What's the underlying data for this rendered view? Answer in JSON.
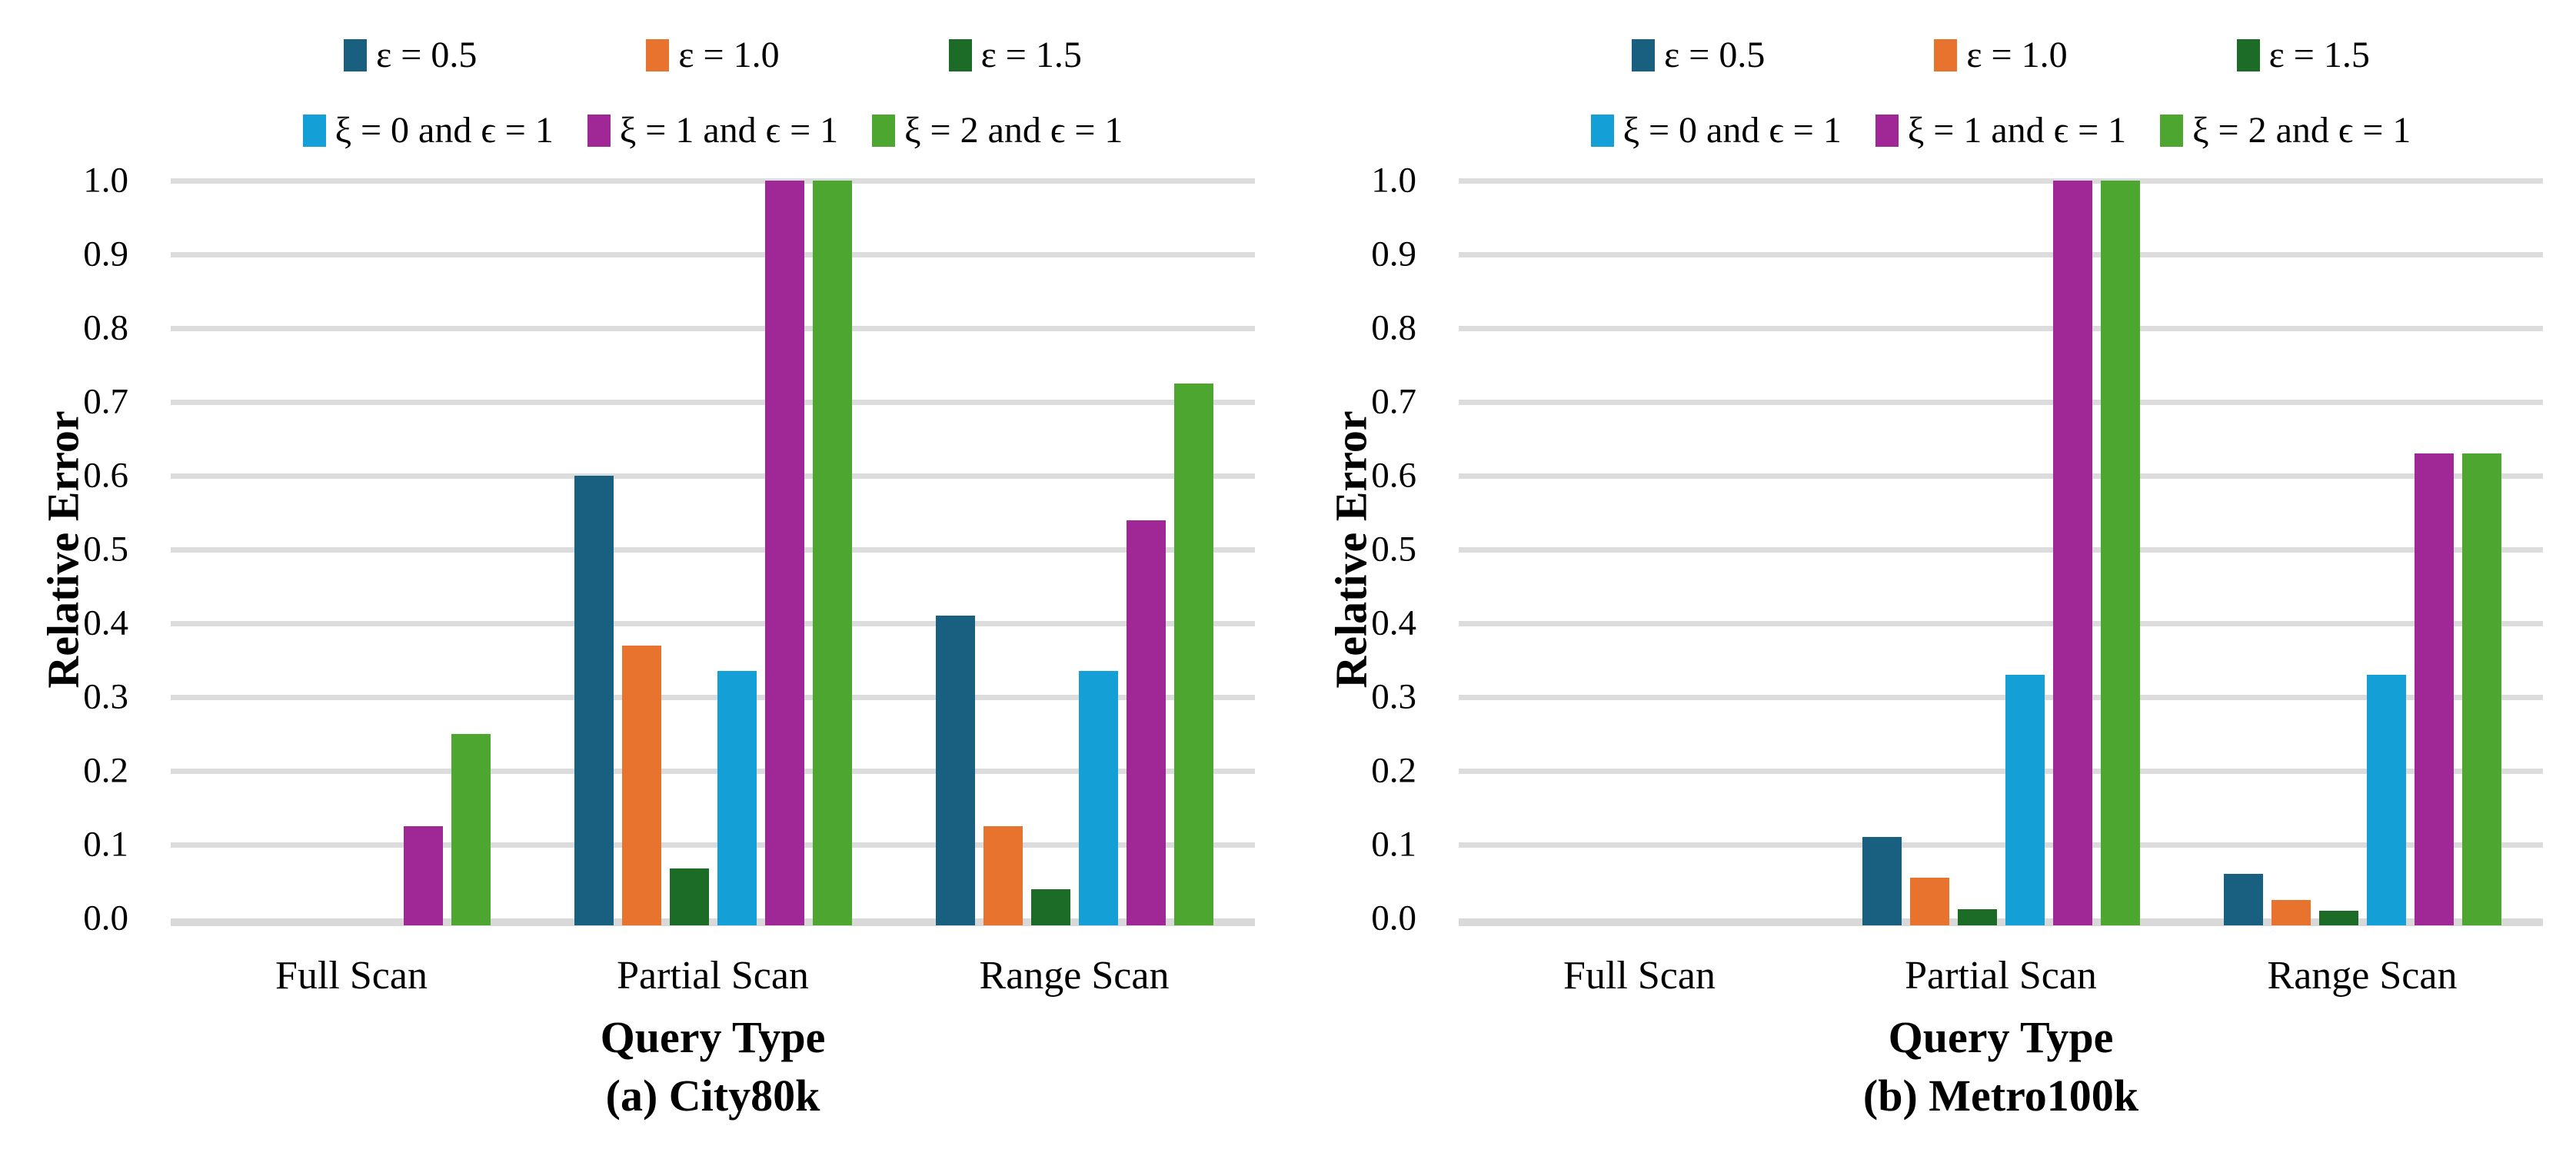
{
  "chart_data": [
    {
      "type": "bar",
      "title": "(a) City80k",
      "xlabel": "Query Type",
      "ylabel": "Relative Error",
      "ylim": [
        0,
        1
      ],
      "yticks": [
        "0.0",
        "0.1",
        "0.2",
        "0.3",
        "0.4",
        "0.5",
        "0.6",
        "0.7",
        "0.8",
        "0.9",
        "1.0"
      ],
      "grid": "horizontal",
      "legend_position": "top",
      "categories": [
        "Full Scan",
        "Partial Scan",
        "Range Scan"
      ],
      "series": [
        {
          "name": "ε = 0.5",
          "color": "#185F80",
          "values": [
            0,
            0.6,
            0.41
          ]
        },
        {
          "name": "ε = 1.0",
          "color": "#E8732F",
          "values": [
            0,
            0.37,
            0.125
          ]
        },
        {
          "name": "ε = 1.5",
          "color": "#1C6B26",
          "values": [
            0,
            0.068,
            0.04
          ]
        },
        {
          "name": "ξ = 0 and ϵ = 1",
          "color": "#149FD7",
          "values": [
            0,
            0.335,
            0.335
          ]
        },
        {
          "name": "ξ = 1 and ϵ = 1",
          "color": "#A02896",
          "values": [
            0.125,
            1.0,
            0.54
          ]
        },
        {
          "name": "ξ = 2 and ϵ = 1",
          "color": "#4CA62F",
          "values": [
            0.25,
            1.0,
            0.725
          ]
        }
      ]
    },
    {
      "type": "bar",
      "title": "(b) Metro100k",
      "xlabel": "Query Type",
      "ylabel": "Relative Error",
      "ylim": [
        0,
        1
      ],
      "yticks": [
        "0.0",
        "0.1",
        "0.2",
        "0.3",
        "0.4",
        "0.5",
        "0.6",
        "0.7",
        "0.8",
        "0.9",
        "1.0"
      ],
      "grid": "horizontal",
      "legend_position": "top",
      "categories": [
        "Full Scan",
        "Partial Scan",
        "Range Scan"
      ],
      "series": [
        {
          "name": "ε = 0.5",
          "color": "#185F80",
          "values": [
            0,
            0.11,
            0.06
          ]
        },
        {
          "name": "ε = 1.0",
          "color": "#E8732F",
          "values": [
            0,
            0.055,
            0.025
          ]
        },
        {
          "name": "ε = 1.5",
          "color": "#1C6B26",
          "values": [
            0,
            0.012,
            0.01
          ]
        },
        {
          "name": "ξ = 0 and ϵ = 1",
          "color": "#149FD7",
          "values": [
            0,
            0.33,
            0.33
          ]
        },
        {
          "name": "ξ = 1 and ϵ = 1",
          "color": "#A02896",
          "values": [
            0,
            1.0,
            0.63
          ]
        },
        {
          "name": "ξ = 2 and ϵ = 1",
          "color": "#4CA62F",
          "values": [
            0,
            1.0,
            0.63
          ]
        }
      ]
    }
  ]
}
